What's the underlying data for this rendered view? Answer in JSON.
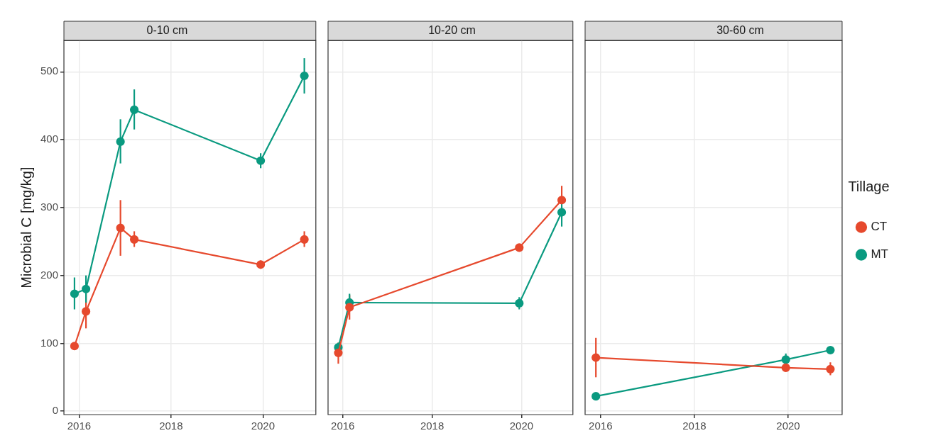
{
  "chart_data": [
    {
      "type": "line",
      "title": "0-10 cm",
      "ylabel": "Microbial C [mg/kg]",
      "xlim": [
        2015.67,
        2021.15
      ],
      "xticks": [
        2016,
        2018,
        2020
      ],
      "ylim": [
        -5,
        546
      ],
      "yticks": [
        0,
        100,
        200,
        300,
        400,
        500
      ],
      "grid": true,
      "marker": "circle",
      "series": [
        {
          "color": "#e6492d",
          "x": [
            2015.9,
            2016.15,
            2016.9,
            2017.2,
            2019.95,
            2020.9
          ],
          "values": [
            96,
            147,
            270,
            253,
            216,
            253
          ],
          "errors": [
            [
              93,
              99
            ],
            [
              122,
              173
            ],
            [
              229,
              311
            ],
            [
              242,
              265
            ],
            [
              210,
              222
            ],
            [
              242,
              265
            ]
          ]
        },
        {
          "color": "#0a9a80",
          "x": [
            2015.9,
            2016.15,
            2016.9,
            2017.2,
            2019.95,
            2020.9
          ],
          "values": [
            173,
            180,
            397,
            444,
            369,
            494
          ],
          "errors": [
            [
              150,
              197
            ],
            [
              160,
              200
            ],
            [
              365,
              430
            ],
            [
              415,
              474
            ],
            [
              358,
              380
            ],
            [
              468,
              520
            ]
          ]
        }
      ]
    },
    {
      "type": "line",
      "title": "10-20 cm",
      "xlim": [
        2015.67,
        2021.15
      ],
      "xticks": [
        2016,
        2018,
        2020
      ],
      "ylim": [
        -5,
        546
      ],
      "yticks": [
        0,
        100,
        200,
        300,
        400,
        500
      ],
      "grid": true,
      "marker": "circle",
      "tick_labels": "x",
      "series": [
        {
          "color": "#e6492d",
          "x": [
            2015.9,
            2016.15,
            2019.95,
            2020.9
          ],
          "values": [
            86,
            153,
            241,
            311
          ],
          "errors": [
            [
              70,
              101
            ],
            [
              135,
              171
            ],
            [
              236,
              246
            ],
            [
              311,
              332
            ]
          ]
        },
        {
          "color": "#0a9a80",
          "x": [
            2015.9,
            2016.15,
            2019.95,
            2020.9
          ],
          "values": [
            94,
            160,
            159,
            293
          ],
          "errors": [
            [
              94,
              101
            ],
            [
              148,
              173
            ],
            [
              150,
              168
            ],
            [
              272,
              314
            ]
          ]
        }
      ]
    },
    {
      "type": "line",
      "title": "30-60 cm",
      "xlim": [
        2015.67,
        2021.15
      ],
      "xticks": [
        2016,
        2018,
        2020
      ],
      "ylim": [
        -5,
        546
      ],
      "yticks": [
        0,
        100,
        200,
        300,
        400,
        500
      ],
      "grid": true,
      "marker": "circle",
      "tick_labels": "x",
      "legend": "right",
      "legend_title": "Tillage",
      "series": [
        {
          "name": "CT",
          "color": "#e6492d",
          "x": [
            2015.9,
            2019.95,
            2020.9
          ],
          "values": [
            79,
            64,
            62
          ],
          "errors": [
            [
              50,
              108
            ],
            [
              60,
              68
            ],
            [
              53,
              72
            ]
          ]
        },
        {
          "name": "MT",
          "color": "#0a9a80",
          "x": [
            2015.9,
            2019.95,
            2020.9
          ],
          "values": [
            22,
            76,
            90
          ],
          "errors": [
            [
              20,
              24
            ],
            [
              67,
              85
            ],
            [
              87,
              93
            ]
          ]
        }
      ]
    }
  ]
}
